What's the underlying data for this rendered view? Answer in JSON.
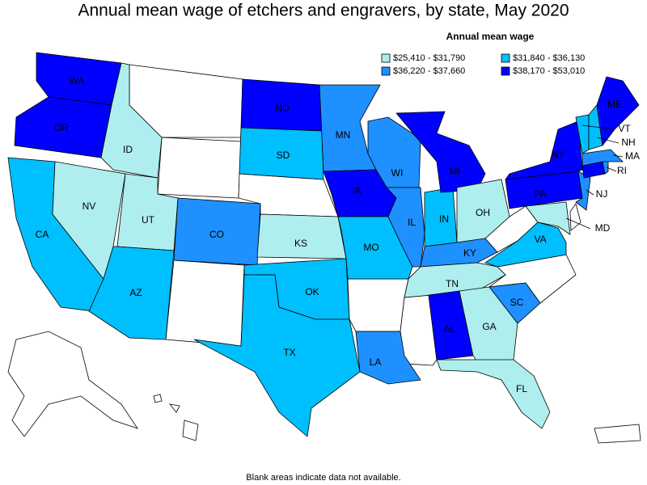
{
  "title": "Annual mean wage of etchers and engravers, by state, May 2020",
  "legend": {
    "title": "Annual mean wage",
    "items": [
      {
        "label": "$25,410 - $31,790",
        "color": "#afeeee"
      },
      {
        "label": "$31,840 - $36,130",
        "color": "#00bfff"
      },
      {
        "label": "$36,220 - $37,660",
        "color": "#1e90ff"
      },
      {
        "label": "$38,170 - $53,010",
        "color": "#0000ff"
      }
    ]
  },
  "states": [
    {
      "label": "WA",
      "color": "#0000ff"
    },
    {
      "label": "OR",
      "color": "#0000ff"
    },
    {
      "label": "CA",
      "color": "#00bfff"
    },
    {
      "label": "NV",
      "color": "#afeeee"
    },
    {
      "label": "ID",
      "color": "#afeeee"
    },
    {
      "label": "UT",
      "color": "#afeeee"
    },
    {
      "label": "AZ",
      "color": "#00bfff"
    },
    {
      "label": "CO",
      "color": "#1e90ff"
    },
    {
      "label": "ND",
      "color": "#0000ff"
    },
    {
      "label": "SD",
      "color": "#00bfff"
    },
    {
      "label": "KS",
      "color": "#afeeee"
    },
    {
      "label": "OK",
      "color": "#00bfff"
    },
    {
      "label": "TX",
      "color": "#00bfff"
    },
    {
      "label": "MN",
      "color": "#1e90ff"
    },
    {
      "label": "WI",
      "color": "#1e90ff"
    },
    {
      "label": "IA",
      "color": "#0000ff"
    },
    {
      "label": "MO",
      "color": "#00bfff"
    },
    {
      "label": "IL",
      "color": "#1e90ff"
    },
    {
      "label": "IN",
      "color": "#00bfff"
    },
    {
      "label": "MI",
      "color": "#0000ff"
    },
    {
      "label": "OH",
      "color": "#afeeee"
    },
    {
      "label": "KY",
      "color": "#1e90ff"
    },
    {
      "label": "TN",
      "color": "#afeeee"
    },
    {
      "label": "LA",
      "color": "#1e90ff"
    },
    {
      "label": "AL",
      "color": "#0000ff"
    },
    {
      "label": "GA",
      "color": "#afeeee"
    },
    {
      "label": "FL",
      "color": "#afeeee"
    },
    {
      "label": "SC",
      "color": "#1e90ff"
    },
    {
      "label": "VA",
      "color": "#00bfff"
    },
    {
      "label": "MD",
      "color": "#afeeee"
    },
    {
      "label": "PA",
      "color": "#0000ff"
    },
    {
      "label": "NY",
      "color": "#0000ff"
    },
    {
      "label": "NJ",
      "color": "#1e90ff"
    },
    {
      "label": null,
      "color": "#0000ff"
    },
    {
      "label": "RI",
      "color": "#1e90ff"
    },
    {
      "label": "MA",
      "color": "#1e90ff"
    },
    {
      "label": "VT",
      "color": "#00bfff"
    },
    {
      "label": "NH",
      "color": "#00bfff"
    },
    {
      "label": "ME",
      "color": "#0000ff"
    }
  ],
  "footnote": "Blank areas indicate data not available."
}
